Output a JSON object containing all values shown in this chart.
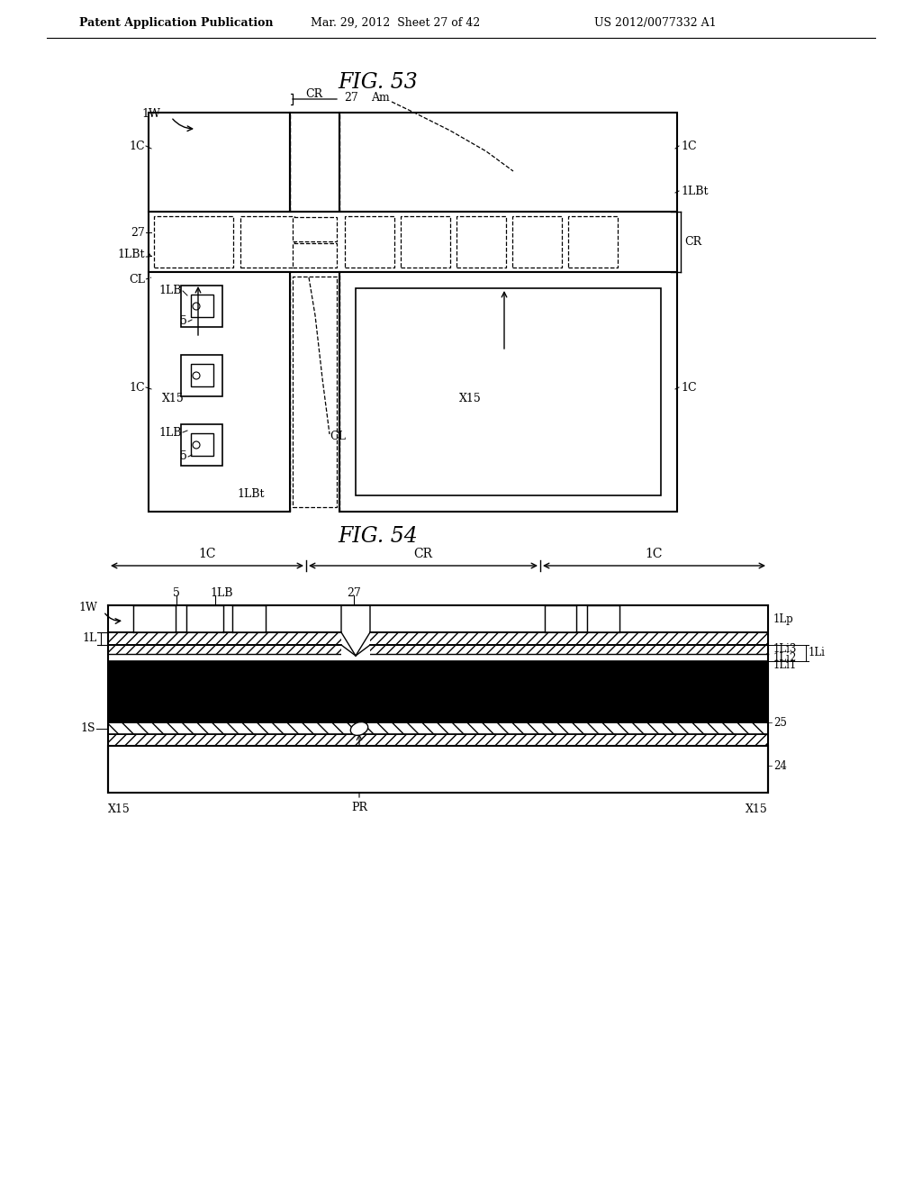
{
  "bg_color": "#ffffff",
  "fig53_title": "FIG. 53",
  "fig54_title": "FIG. 54",
  "header_pub": "Patent Application Publication",
  "header_date": "Mar. 29, 2012  Sheet 27 of 42",
  "header_num": "US 2012/0077332 A1"
}
